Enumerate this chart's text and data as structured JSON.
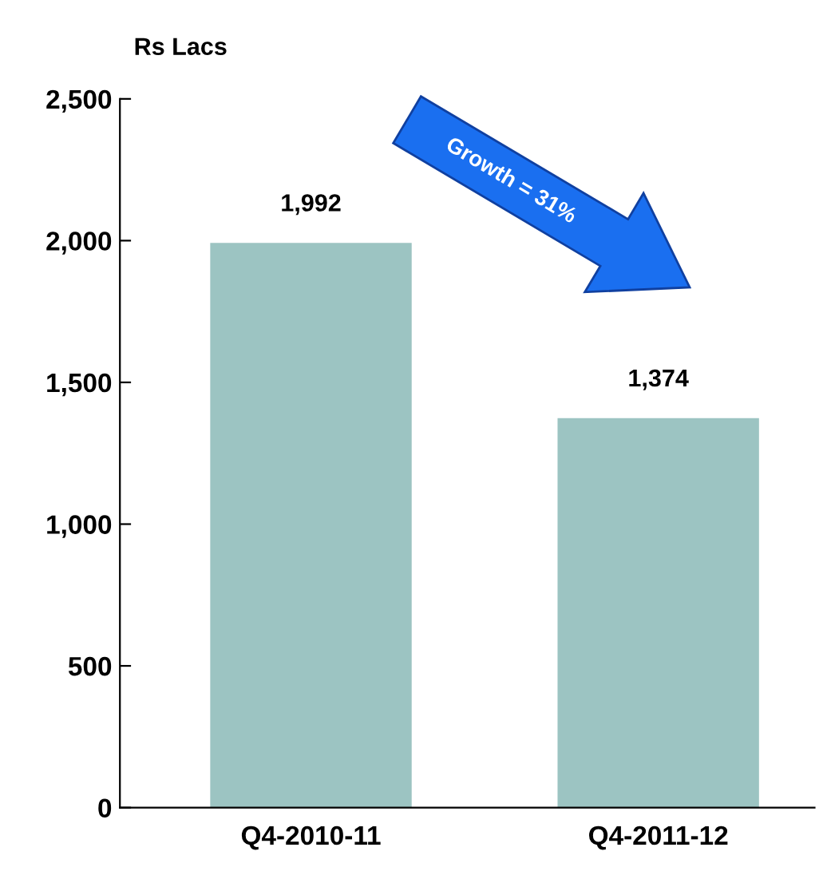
{
  "chart_data": {
    "type": "bar",
    "ylabel": "Rs Lacs",
    "categories": [
      "Q4-2010-11",
      "Q4-2011-12"
    ],
    "values": [
      1992,
      1374
    ],
    "value_labels": [
      "1,992",
      "1,374"
    ],
    "color": "#9cc4c2",
    "ylim": [
      0,
      2500
    ],
    "yticks": [
      {
        "value": 0,
        "label": "0"
      },
      {
        "value": 500,
        "label": "500"
      },
      {
        "value": 1000,
        "label": "1,000"
      },
      {
        "value": 1500,
        "label": "1,500"
      },
      {
        "value": 2000,
        "label": "2,000"
      },
      {
        "value": 2500,
        "label": "2,500"
      }
    ],
    "annotations": [
      "Growth = 31%"
    ],
    "grid": false,
    "legend": false
  }
}
